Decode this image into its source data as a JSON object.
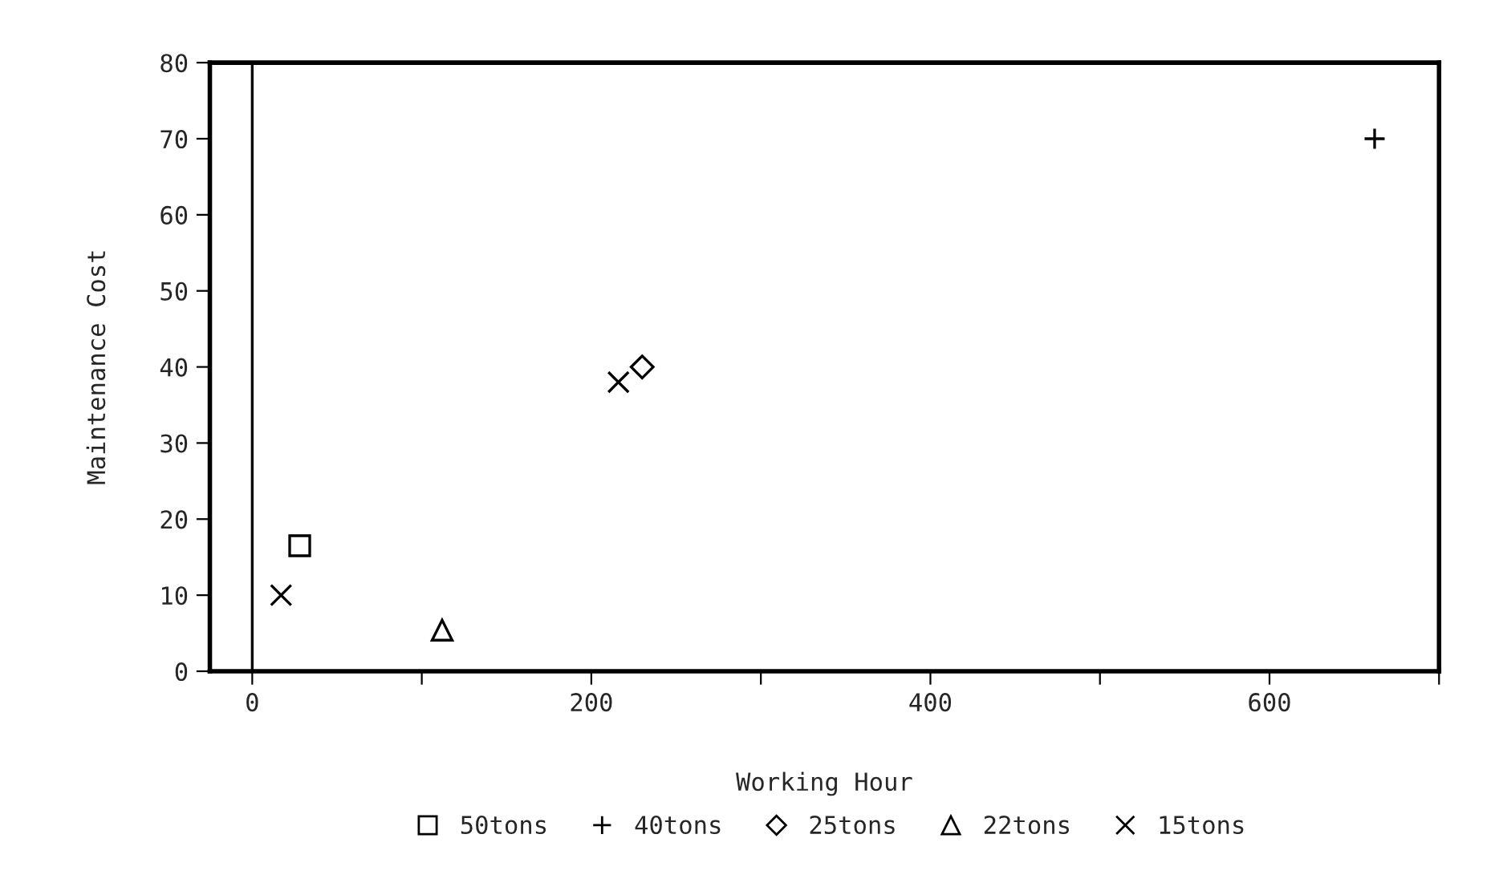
{
  "chart_data": {
    "type": "scatter",
    "xlabel": "Working Hour",
    "ylabel": "Maintenance Cost",
    "xlim": [
      -25,
      700
    ],
    "ylim": [
      0,
      80
    ],
    "xticks": [
      0,
      {
        "value": 100,
        "label": null
      },
      200,
      {
        "value": 300,
        "label": null
      },
      400,
      {
        "value": 500,
        "label": null
      },
      600,
      {
        "value": 700,
        "label": null
      }
    ],
    "yticks": [
      0,
      10,
      20,
      30,
      40,
      50,
      60,
      70,
      80
    ],
    "series": [
      {
        "name": "50tons",
        "color": "#000000",
        "marker": "square",
        "x": [
          28
        ],
        "values": [
          16.5
        ]
      },
      {
        "name": "40tons",
        "color": "#000000",
        "marker": "plus",
        "x": [
          662
        ],
        "values": [
          70
        ]
      },
      {
        "name": "25tons",
        "color": "#000000",
        "marker": "diamond",
        "x": [
          230
        ],
        "values": [
          40
        ]
      },
      {
        "name": "22tons",
        "color": "#000000",
        "marker": "triangle",
        "x": [
          112
        ],
        "values": [
          5.4
        ]
      },
      {
        "name": "15tons",
        "color": "#000000",
        "marker": "cross",
        "x": [
          17,
          216
        ],
        "values": [
          10,
          38
        ]
      }
    ],
    "ref_lines": [
      {
        "axis": "x",
        "value": 0,
        "color": "#000000"
      }
    ],
    "legend": "bottom",
    "grid": false
  }
}
